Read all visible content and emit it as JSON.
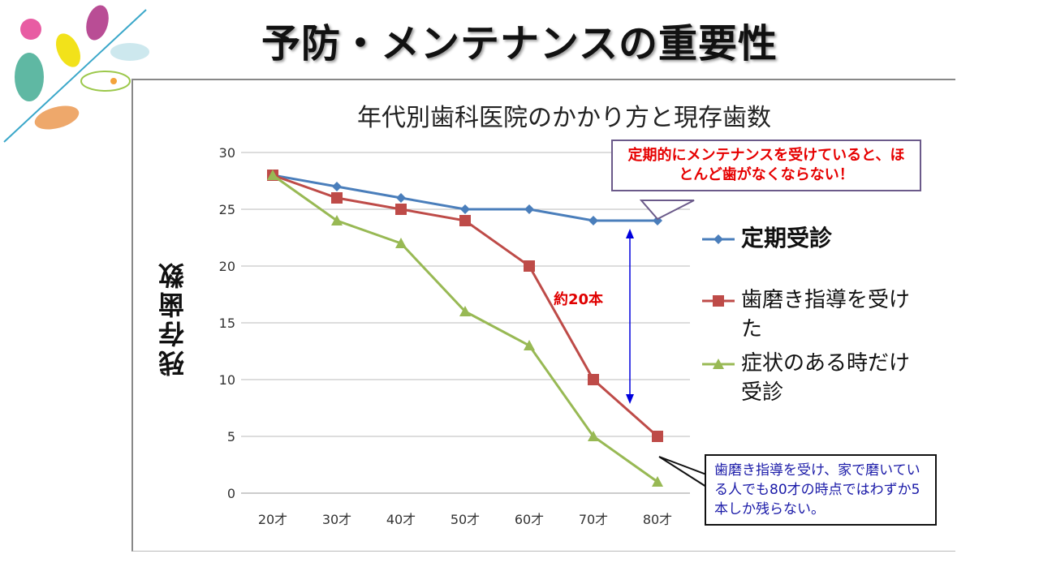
{
  "slide_title": "予防・メンテナンスの重要性",
  "chart_data": {
    "type": "line",
    "title": "年代別歯科医院のかかり方と現存歯数",
    "ylabel": "残存歯数",
    "xlabel": "",
    "categories": [
      "20才",
      "30才",
      "40才",
      "50才",
      "60才",
      "70才",
      "80才"
    ],
    "ylim": [
      0,
      30
    ],
    "yticks": [
      0,
      5,
      10,
      15,
      20,
      25,
      30
    ],
    "grid": true,
    "legend_position": "right",
    "series": [
      {
        "name": "定期受診",
        "color": "#4a7ebb",
        "marker": "diamond",
        "values": [
          28,
          27,
          26,
          25,
          25,
          24,
          24
        ]
      },
      {
        "name": "歯磨き指導を受けた",
        "color": "#be4b48",
        "marker": "square",
        "values": [
          28,
          26,
          25,
          24,
          20,
          10,
          5
        ]
      },
      {
        "name": "症状のある時だけ受診",
        "color": "#98b954",
        "marker": "triangle",
        "values": [
          28,
          24,
          22,
          16,
          13,
          5,
          1
        ]
      }
    ],
    "annotations": {
      "difference": "約20本",
      "callout_top": "定期的にメンテナンスを受けていると、ほとんど歯がなくならない！",
      "callout_bottom": "歯磨き指導を受け、家で磨いている人でも80才の時点ではわずか5本しか残らない。",
      "arrow_color": "#0000dd"
    }
  },
  "legend": {
    "item0": "定期受診",
    "item1": "歯磨き指導を受けた",
    "item2": "症状のある時だけ受診"
  }
}
